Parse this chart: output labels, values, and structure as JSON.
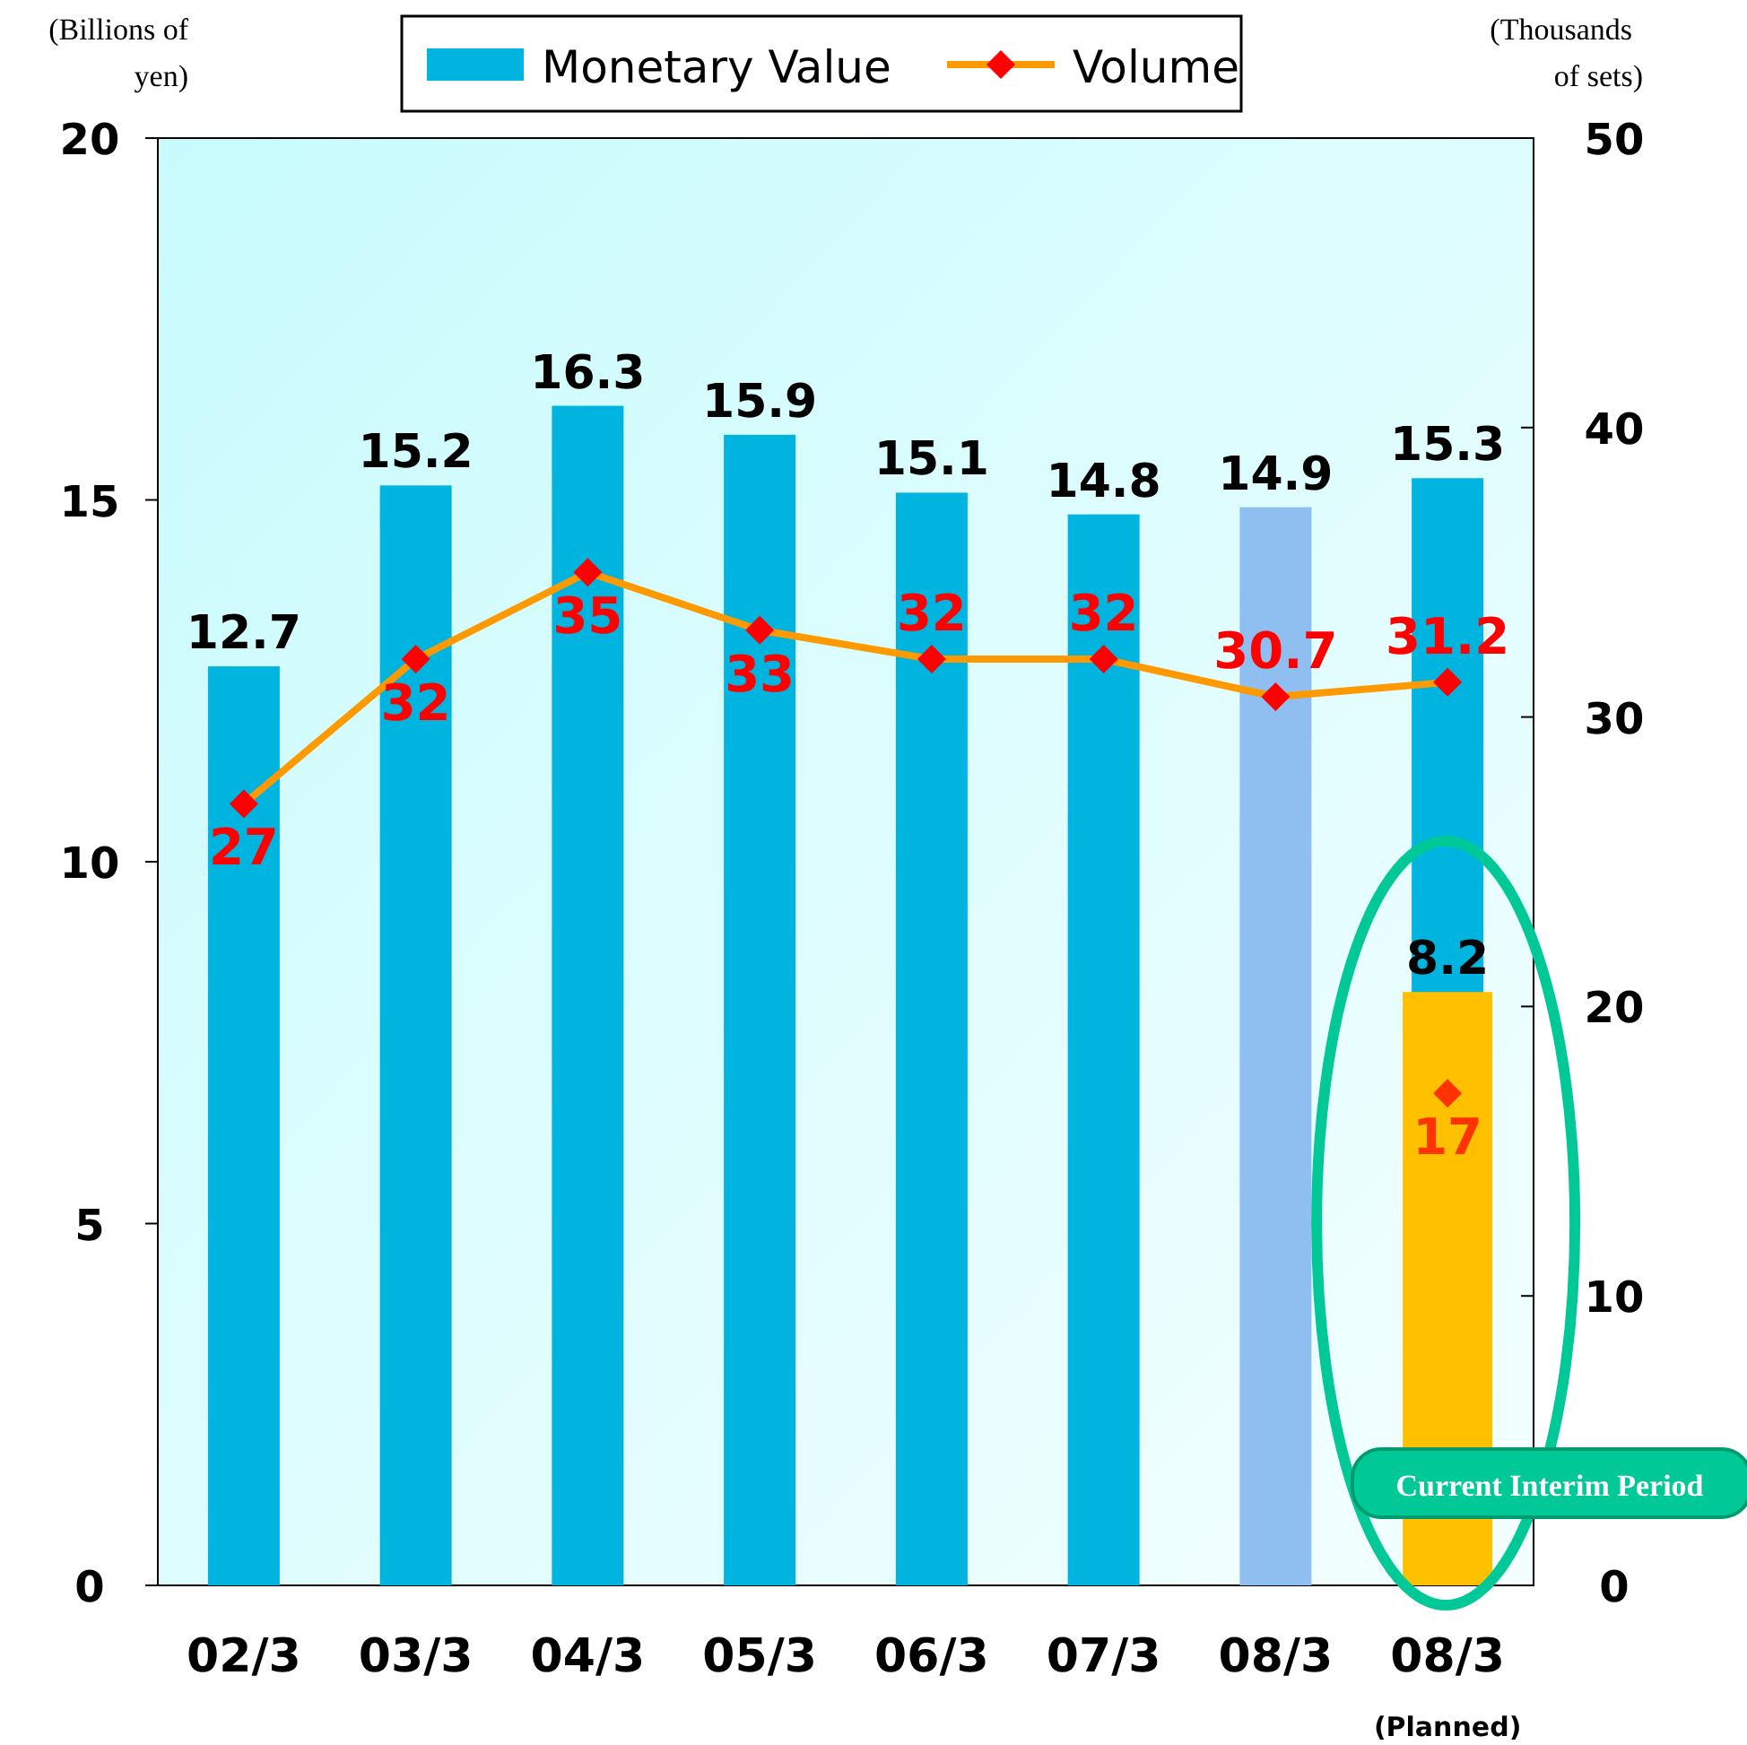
{
  "chart_data": {
    "type": "bar",
    "categories": [
      "02/3",
      "03/3",
      "04/3",
      "05/3",
      "06/3",
      "07/3",
      "08/3",
      "08/3"
    ],
    "ylabel": "(Billions of yen)",
    "y2label": "(Thousands of sets)",
    "ylim": [
      0,
      20
    ],
    "yticks": [
      0,
      5,
      10,
      15,
      20
    ],
    "y2lim": [
      0,
      50
    ],
    "y2ticks": [
      0,
      10,
      20,
      30,
      40,
      50
    ],
    "series": [
      {
        "name": "Monetary Value",
        "color": "#00b4e0",
        "colors": [
          "#00b4e0",
          "#00b4e0",
          "#00b4e0",
          "#00b4e0",
          "#00b4e0",
          "#00b4e0",
          "#8fbff0",
          "#00b4e0"
        ],
        "values": [
          12.7,
          15.2,
          16.3,
          15.9,
          15.1,
          14.8,
          14.9,
          15.3
        ]
      },
      {
        "color": "#ffc000",
        "values": [
          null,
          null,
          null,
          null,
          null,
          null,
          null,
          8.2
        ]
      },
      {
        "name": "Volume",
        "type": "line",
        "axis": "y2",
        "color": "#ff9900",
        "colors": [
          "#ff0000",
          "#ff0000",
          "#ff0000",
          "#ff0000",
          "#ff0000",
          "#ff0000",
          "#ff0000",
          "#ff0000"
        ],
        "marker": "diamond",
        "values": [
          27,
          32,
          35,
          33,
          32,
          32,
          30.7,
          31.2
        ]
      },
      {
        "type": "scatter",
        "axis": "y2",
        "color": "#ff3300",
        "marker": "diamond",
        "values": [
          null,
          null,
          null,
          null,
          null,
          null,
          null,
          17
        ]
      }
    ],
    "annotations": [
      "(Planned)",
      "Current Interim Period"
    ],
    "data_labels": true,
    "legend": "top",
    "grid": false
  }
}
